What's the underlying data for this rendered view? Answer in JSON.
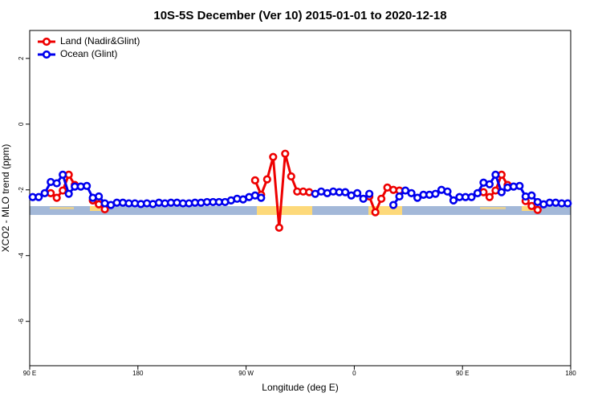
{
  "chart_data": {
    "type": "line",
    "title": "10S-5S December (Ver 10)   2015-01-01 to 2020-12-18",
    "x_label": "Longitude (deg E)",
    "y_label": "XCO2 - MLO trend (ppm)",
    "xlim": [
      90,
      540
    ],
    "ylim": [
      -7.35,
      2.85
    ],
    "xticks": [
      {
        "value": 90,
        "label": "90 E"
      },
      180,
      {
        "value": 270,
        "label": "90 W"
      },
      {
        "value": 360,
        "label": "0"
      },
      {
        "value": 450,
        "label": "90 E"
      },
      180
    ],
    "yticks": [
      2,
      0,
      -2,
      -4,
      -6
    ],
    "legend": "upper left",
    "x": [
      92.5,
      97.5,
      102.5,
      107.5,
      112.5,
      117.5,
      122.5,
      127.5,
      132.5,
      137.5,
      142.5,
      147.5,
      152.5,
      157.5,
      162.5,
      167.5,
      172.5,
      177.5,
      182.5,
      187.5,
      192.5,
      197.5,
      202.5,
      207.5,
      212.5,
      217.5,
      222.5,
      227.5,
      232.5,
      237.5,
      242.5,
      247.5,
      252.5,
      257.5,
      262.5,
      267.5,
      272.5,
      277.5,
      282.5,
      287.5,
      292.5,
      297.5,
      302.5,
      307.5,
      312.5,
      317.5,
      322.5,
      327.5,
      332.5,
      337.5,
      342.5,
      347.5,
      352.5,
      357.5,
      362.5,
      367.5,
      372.5,
      377.5,
      382.5,
      387.5,
      392.5,
      397.5,
      402.5,
      407.5,
      412.5,
      417.5,
      422.5,
      427.5,
      432.5,
      437.5,
      442.5,
      447.5,
      452.5,
      457.5,
      462.5,
      467.5,
      472.5,
      477.5,
      482.5,
      487.5,
      492.5,
      497.5,
      502.5,
      507.5,
      512.5,
      517.5,
      522.5,
      527.5,
      532.5,
      537.5
    ],
    "series": [
      {
        "name": "Land (Nadir&Glint)",
        "color": "#ee0000",
        "values": [
          null,
          null,
          null,
          -2.1,
          -2.24,
          -2.02,
          -1.54,
          -1.85,
          null,
          null,
          -2.32,
          -2.44,
          -2.59,
          null,
          null,
          null,
          null,
          null,
          null,
          null,
          null,
          null,
          null,
          null,
          null,
          null,
          null,
          null,
          null,
          null,
          null,
          null,
          null,
          null,
          null,
          null,
          null,
          -1.71,
          -2.15,
          -1.68,
          -1.0,
          -3.15,
          -0.9,
          -1.59,
          -2.05,
          -2.05,
          -2.07,
          null,
          null,
          null,
          null,
          null,
          null,
          null,
          null,
          null,
          -2.2,
          -2.68,
          -2.27,
          -1.93,
          -2.0,
          -2.02,
          null,
          null,
          null,
          null,
          null,
          null,
          null,
          null,
          null,
          null,
          null,
          null,
          null,
          -2.07,
          -2.22,
          -2.02,
          -1.54,
          -1.85,
          null,
          null,
          -2.34,
          -2.49,
          -2.61,
          null,
          null,
          null,
          null,
          null
        ]
      },
      {
        "name": "Ocean (Glint)",
        "color": "#0000ee",
        "values": [
          -2.22,
          -2.22,
          -2.1,
          -1.76,
          -1.8,
          -1.54,
          -2.12,
          -1.9,
          -1.9,
          -1.88,
          -2.24,
          -2.2,
          -2.41,
          -2.46,
          -2.39,
          -2.39,
          -2.41,
          -2.41,
          -2.43,
          -2.41,
          -2.43,
          -2.39,
          -2.41,
          -2.39,
          -2.39,
          -2.41,
          -2.41,
          -2.39,
          -2.39,
          -2.37,
          -2.37,
          -2.37,
          -2.37,
          -2.32,
          -2.27,
          -2.29,
          -2.22,
          -2.17,
          -2.24,
          null,
          null,
          null,
          null,
          null,
          null,
          null,
          null,
          -2.12,
          -2.05,
          -2.1,
          -2.05,
          -2.07,
          -2.07,
          -2.17,
          -2.1,
          -2.27,
          -2.12,
          null,
          null,
          null,
          -2.46,
          -2.2,
          -2.02,
          -2.1,
          -2.24,
          -2.15,
          -2.15,
          -2.12,
          -2.0,
          -2.05,
          -2.32,
          -2.22,
          -2.22,
          -2.22,
          -2.1,
          -1.78,
          -1.83,
          -1.54,
          -2.07,
          -1.93,
          -1.9,
          -1.88,
          -2.2,
          -2.17,
          -2.37,
          -2.44,
          -2.39,
          -2.39,
          -2.41,
          -2.41
        ]
      }
    ]
  }
}
